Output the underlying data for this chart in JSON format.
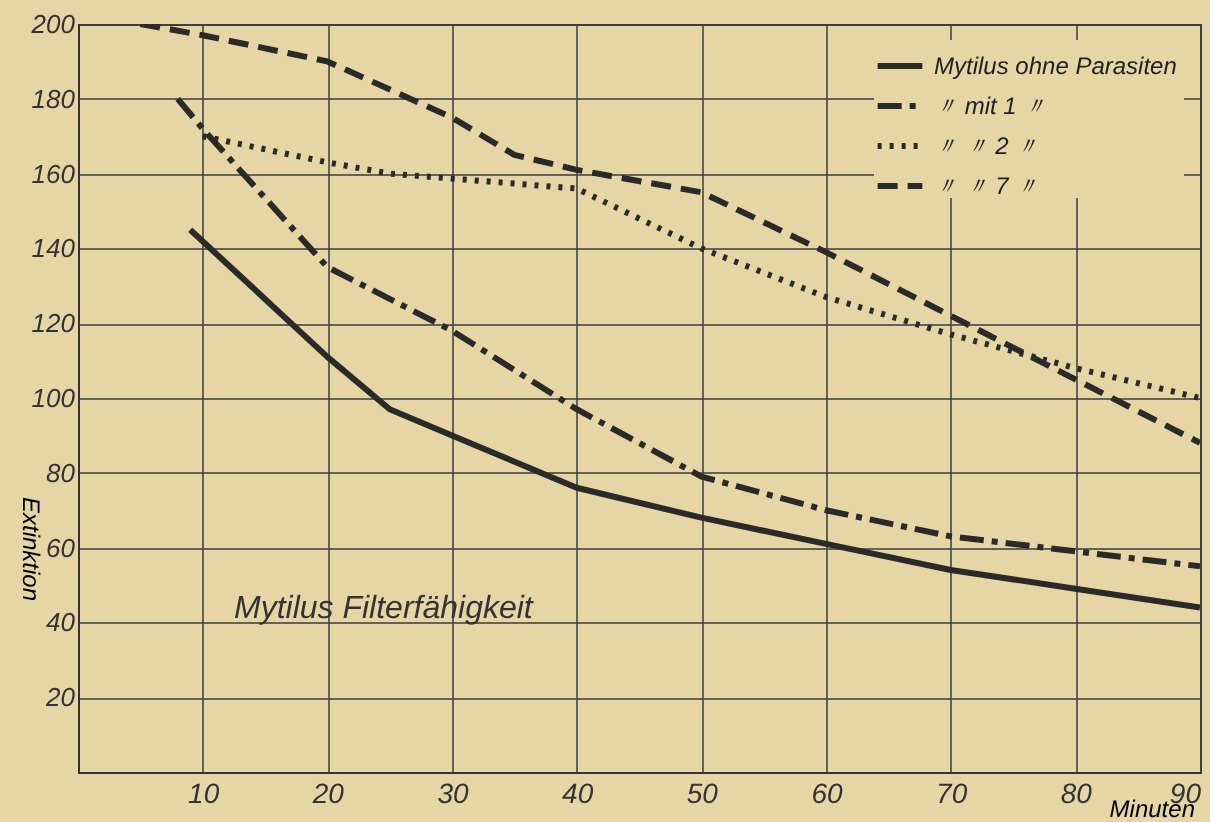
{
  "chart_data": {
    "type": "line",
    "xlabel": "Minuten",
    "ylabel": "Extinktion",
    "annotations": [
      "Mytilus   Filterfähigkeit"
    ],
    "xlim": [
      0,
      90
    ],
    "xticks": [
      10,
      20,
      30,
      40,
      50,
      60,
      70,
      80,
      90
    ],
    "ylim": [
      0,
      200
    ],
    "yticks": [
      20,
      40,
      60,
      80,
      100,
      120,
      140,
      160,
      180,
      200
    ],
    "grid": true,
    "legend": "top right",
    "series": [
      {
        "name": "Mytilus  ohne Parasiten",
        "color": "#2a2a28",
        "line_style": "solid",
        "x": [
          9,
          20,
          25,
          30,
          40,
          50,
          60,
          70,
          80,
          90
        ],
        "values": [
          145,
          111,
          97,
          90,
          76,
          68,
          61,
          54,
          49,
          44
        ]
      },
      {
        "name": "〃   mit 1   〃",
        "color": "#2a2a28",
        "line_style": "dashdot",
        "x": [
          8,
          10,
          20,
          30,
          40,
          50,
          60,
          70,
          80,
          90
        ],
        "values": [
          180,
          172,
          135,
          118,
          97,
          79,
          70,
          63,
          59,
          55
        ]
      },
      {
        "name": "〃   〃  2   〃",
        "color": "#2a2a28",
        "line_style": "dotted",
        "x": [
          10,
          20,
          25,
          40,
          50,
          60,
          70,
          80,
          90
        ],
        "values": [
          170,
          163,
          160,
          156,
          140,
          127,
          117,
          108,
          100
        ]
      },
      {
        "name": "〃   〃  7   〃",
        "color": "#2a2a28",
        "line_style": "dashed",
        "x": [
          5,
          10,
          20,
          30,
          35,
          40,
          50,
          60,
          70,
          80,
          90
        ],
        "values": [
          200,
          197,
          190,
          175,
          165,
          161,
          155,
          139,
          122,
          105,
          88
        ]
      }
    ]
  }
}
